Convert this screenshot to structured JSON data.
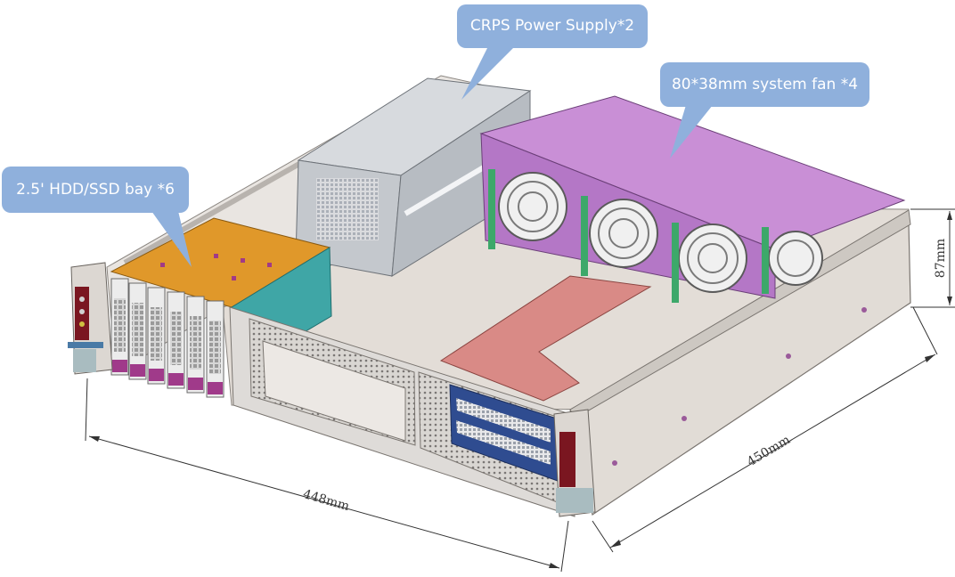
{
  "callouts": {
    "psu": "CRPS Power Supply*2",
    "fan": "80*38mm system fan *4",
    "hdd": "2.5' HDD/SSD bay *6"
  },
  "dimensions": {
    "width": "448mm",
    "depth": "450mm",
    "height": "87mm"
  },
  "colors": {
    "callout_bg": "#8fb0dc",
    "chassis": "#e6e1dc",
    "psu": "#c9cdd2",
    "fans": "#c98fd6",
    "hdd_bay": "#e0982a",
    "riser": "#d98a86",
    "backplane": "#3fa6a6"
  }
}
